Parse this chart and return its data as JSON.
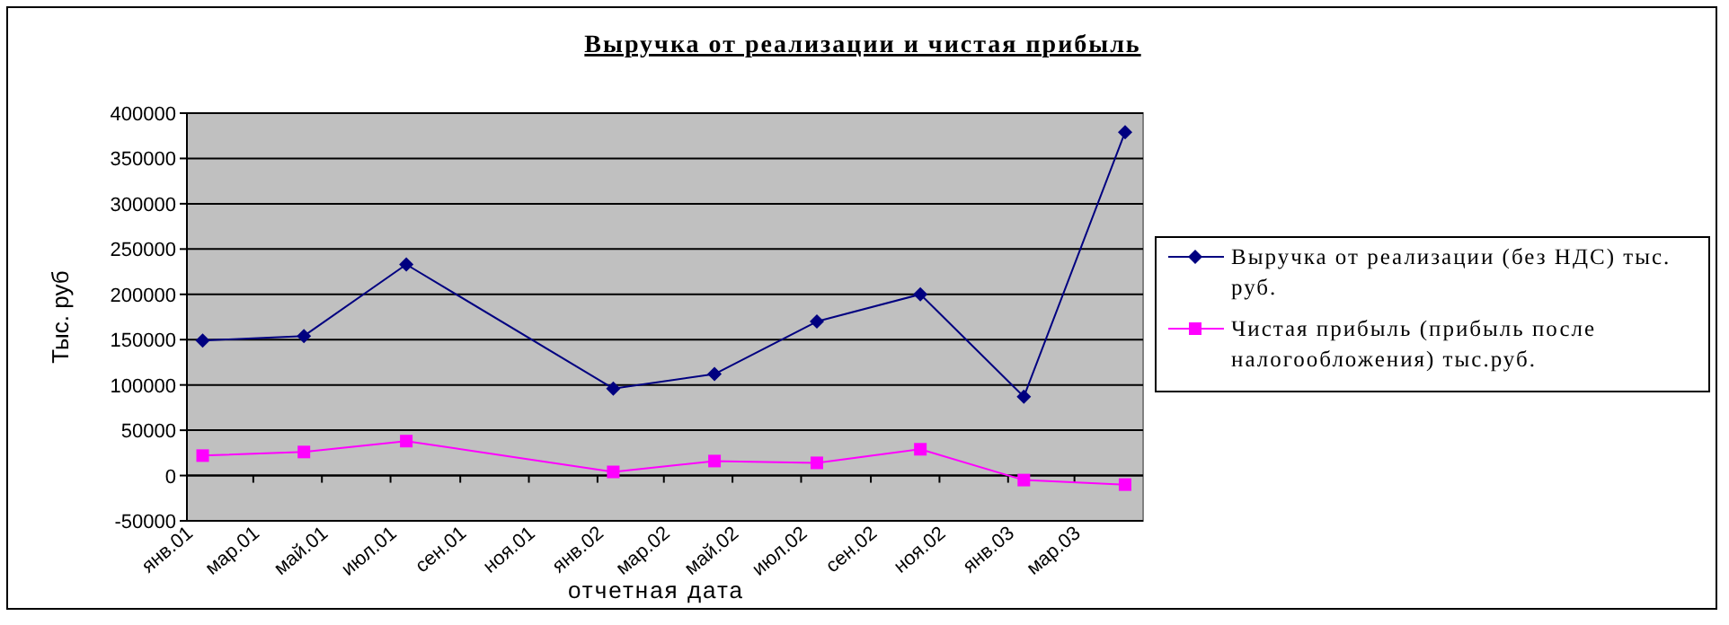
{
  "chart_data": {
    "type": "line",
    "title": "Выручка от реализации и чистая прибыль",
    "xlabel": "отчетная дата",
    "ylabel": "Тыс. руб",
    "x": [
      "2001-01-15",
      "2001-04-15",
      "2001-07-15",
      "2002-01-15",
      "2002-04-15",
      "2002-07-15",
      "2002-10-15",
      "2003-01-15",
      "2003-04-15"
    ],
    "series": [
      {
        "name": "Выручка от реализации (без НДС)  тыс. руб.",
        "color": "#000080",
        "marker": "diamond",
        "values": [
          149000,
          154000,
          233000,
          96000,
          112000,
          170000,
          200000,
          87000,
          379000
        ]
      },
      {
        "name": "Чистая прибыль (прибыль после налогообложения) тыс.руб.",
        "color": "#ff00ff",
        "marker": "square",
        "values": [
          22000,
          26000,
          38000,
          4000,
          16000,
          14000,
          29000,
          -5000,
          -10000
        ]
      }
    ],
    "xlim": [
      "2001-01-01",
      "2003-05-01"
    ],
    "xticks": [
      {
        "value": "2001-01-01",
        "label": "янв.01"
      },
      {
        "value": "2001-03-01",
        "label": "мар.01"
      },
      {
        "value": "2001-05-01",
        "label": "май.01"
      },
      {
        "value": "2001-07-01",
        "label": "июл.01"
      },
      {
        "value": "2001-09-01",
        "label": "сен.01"
      },
      {
        "value": "2001-11-01",
        "label": "ноя.01"
      },
      {
        "value": "2002-01-01",
        "label": "янв.02"
      },
      {
        "value": "2002-03-01",
        "label": "мар.02"
      },
      {
        "value": "2002-05-01",
        "label": "май.02"
      },
      {
        "value": "2002-07-01",
        "label": "июл.02"
      },
      {
        "value": "2002-09-01",
        "label": "сен.02"
      },
      {
        "value": "2002-11-01",
        "label": "ноя.02"
      },
      {
        "value": "2003-01-01",
        "label": "янв.03"
      },
      {
        "value": "2003-03-01",
        "label": "мар.03"
      }
    ],
    "ylim": [
      -50000,
      400000
    ],
    "yticks": [
      -50000,
      0,
      50000,
      100000,
      150000,
      200000,
      250000,
      300000,
      350000,
      400000
    ],
    "grid": "y",
    "legend": "right"
  }
}
